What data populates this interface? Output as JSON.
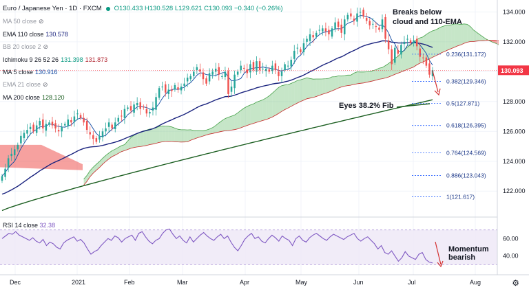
{
  "header": {
    "title": "Euro / Japanese Yen · 1D · FXCM",
    "ohlc": "O130.433 H130.528 L129.621 C130.093 −0.340 (−0.26%)"
  },
  "legend": [
    {
      "label": "MA 50 close",
      "value": "",
      "muted": true,
      "eye": true
    },
    {
      "label": "EMA 110 close",
      "value": "130.578",
      "muted": false,
      "eye": false
    },
    {
      "label": "BB 20 close 2",
      "value": "",
      "muted": true,
      "eye": true
    },
    {
      "label": "Ichimoku 9 26 52 26",
      "value": "131.398",
      "value2": "131.873",
      "muted": false,
      "eye": false
    },
    {
      "label": "MA 5 close",
      "value": "130.916",
      "muted": false,
      "eye": false
    },
    {
      "label": "EMA 21 close",
      "value": "",
      "muted": true,
      "eye": true
    },
    {
      "label": "MA 200 close",
      "value": "128.120",
      "muted": false,
      "eye": false
    }
  ],
  "rsi_legend": {
    "label": "RSI 14 close",
    "value": "32.38"
  },
  "annotations": {
    "breaks_line1": "Breaks below",
    "breaks_line2": "cloud and 110-EMA",
    "eyes": "Eyes 38.2% Fib",
    "momentum_line1": "Momentum",
    "momentum_line2": "bearish"
  },
  "colors": {
    "up": "#26a69a",
    "down": "#ef5350",
    "ema110": "#1a237e",
    "ma200": "#1b5e20",
    "ma5": "#0d47a1",
    "cloud_bull": "#81c784",
    "cloud_bear": "#ef5350",
    "rsi": "#7e57c2",
    "price_label_bg": "#f23645",
    "fib": "#2962ff"
  },
  "chart_data": [
    {
      "type": "candlestick",
      "symbol": "EUR/JPY",
      "timeframe": "1D",
      "x_tick_labels": [
        "Dec",
        "2021",
        "Feb",
        "Mar",
        "Apr",
        "May",
        "Jun",
        "Jul",
        "Aug"
      ],
      "y_tick_labels": [
        "122.000",
        "124.000",
        "126.000",
        "128.000",
        "130.000",
        "132.000",
        "134.000"
      ],
      "ylim": [
        120.4,
        134.8
      ],
      "last_price": "130.093",
      "series_close": [
        123.0,
        123.5,
        124.2,
        124.5,
        124.8,
        125.1,
        125.7,
        125.9,
        126.1,
        126.3,
        126.0,
        126.4,
        126.7,
        126.2,
        126.5,
        126.6,
        126.4,
        126.2,
        126.0,
        126.3,
        126.5,
        126.8,
        126.6,
        127.0,
        127.2,
        126.9,
        126.6,
        126.1,
        125.8,
        125.5,
        125.3,
        125.7,
        126.0,
        126.2,
        126.6,
        126.2,
        126.6,
        126.9,
        127.0,
        127.5,
        127.6,
        127.4,
        127.8,
        127.9,
        127.5,
        127.6,
        127.2,
        127.3,
        127.6,
        128.3,
        128.9,
        129.0,
        128.6,
        128.8,
        128.7,
        129.1,
        128.8,
        129.0,
        129.2,
        129.6,
        129.7,
        130.0,
        130.3,
        130.0,
        129.5,
        129.2,
        129.9,
        130.0,
        130.2,
        129.8,
        129.7,
        130.0,
        128.5,
        129.0,
        129.8,
        130.0,
        130.4,
        130.2,
        129.9,
        130.5,
        130.1,
        130.7,
        130.1,
        130.2,
        130.2,
        130.0,
        130.4,
        130.1,
        129.7,
        130.0,
        130.5,
        130.4,
        130.8,
        131.4,
        131.6,
        131.3,
        131.9,
        132.2,
        132.5,
        132.3,
        132.6,
        132.8,
        132.9,
        132.7,
        132.5,
        132.9,
        133.3,
        133.0,
        132.6,
        133.5,
        133.8,
        133.7,
        133.4,
        133.9,
        134.0,
        133.7,
        133.4,
        133.1,
        133.2,
        133.0,
        132.8,
        133.5,
        132.2,
        131.5,
        130.5,
        131.6,
        131.2,
        131.8,
        132.0,
        132.2,
        131.9,
        132.1,
        131.7,
        131.0,
        130.9,
        130.4,
        129.8,
        130.1
      ],
      "ema110": {
        "label": "EMA 110 close",
        "last": 130.578
      },
      "ma200": {
        "label": "MA 200 close",
        "last": 128.12
      },
      "ma5": {
        "label": "MA 5 close",
        "last": 130.916
      },
      "ichimoku": {
        "label": "Ichimoku 9 26 52 26",
        "span_a": 131.398,
        "span_b": 131.873
      },
      "fibonacci": [
        {
          "ratio": "0.236",
          "price": "131.172"
        },
        {
          "ratio": "0.382",
          "price": "129.346"
        },
        {
          "ratio": "0.5",
          "price": "127.871"
        },
        {
          "ratio": "0.618",
          "price": "126.395"
        },
        {
          "ratio": "0.764",
          "price": "124.569"
        },
        {
          "ratio": "0.886",
          "price": "123.043"
        },
        {
          "ratio": "1",
          "price": "121.617"
        }
      ]
    },
    {
      "type": "line",
      "title": "RSI 14 close",
      "last": 32.38,
      "ylim": [
        20,
        80
      ],
      "y_tick_labels": [
        "40.00",
        "60.00"
      ],
      "band": [
        30,
        70
      ],
      "values": [
        60,
        63,
        66,
        65,
        68,
        64,
        62,
        60,
        58,
        61,
        57,
        55,
        59,
        52,
        56,
        54,
        50,
        48,
        55,
        58,
        60,
        62,
        57,
        59,
        55,
        48,
        42,
        45,
        47,
        52,
        56,
        60,
        58,
        63,
        61,
        56,
        60,
        62,
        64,
        58,
        66,
        68,
        62,
        57,
        54,
        58,
        60,
        66,
        70,
        71,
        65,
        60,
        63,
        58,
        55,
        62,
        56,
        60,
        64,
        67,
        63,
        60,
        58,
        62,
        65,
        60,
        63,
        56,
        50,
        46,
        52,
        59,
        63,
        66,
        60,
        62,
        57,
        55,
        60,
        64,
        61,
        57,
        63,
        60,
        58,
        52,
        60,
        63,
        58,
        56,
        61,
        64,
        66,
        63,
        60,
        58,
        62,
        65,
        63,
        61,
        59,
        62,
        64,
        66,
        60,
        57,
        60,
        62,
        58,
        54,
        48,
        52,
        44,
        42,
        46,
        40,
        34,
        38,
        45,
        40,
        38,
        36,
        42,
        44,
        36,
        33,
        32
      ]
    }
  ]
}
